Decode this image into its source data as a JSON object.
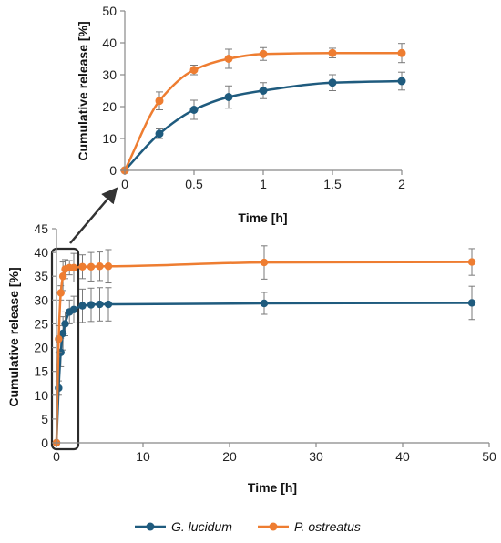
{
  "colors": {
    "g_lucidum": "#1f5b7e",
    "p_ostreatus": "#ee7d31",
    "axis": "#888888",
    "error_bar": "#7a7a7a",
    "highlight_box": "#2b2b2b"
  },
  "legend": {
    "position": "bottom-center",
    "items": [
      "G. lucidum",
      "P. ostreatus"
    ]
  },
  "chart_data": [
    {
      "id": "inset",
      "type": "line",
      "xlabel": "Time [h]",
      "ylabel": "Cumulative release [%]",
      "xlim": [
        0,
        2
      ],
      "ylim": [
        0,
        50
      ],
      "xticks": [
        0,
        0.5,
        1,
        1.5,
        2
      ],
      "xtick_labels": [
        "0",
        "0.5",
        "1",
        "1.5",
        "2"
      ],
      "yticks": [
        0,
        10,
        20,
        30,
        40,
        50
      ],
      "ytick_labels": [
        "0",
        "10",
        "20",
        "30",
        "40",
        "50"
      ],
      "grid": false,
      "series": [
        {
          "name": "G. lucidum",
          "x": [
            0,
            0.25,
            0.5,
            0.75,
            1,
            1.5,
            2
          ],
          "y": [
            0,
            11.5,
            19,
            23,
            25,
            27.5,
            28
          ],
          "error": [
            0,
            1.5,
            3,
            3.5,
            2.5,
            2.5,
            2.8
          ]
        },
        {
          "name": "P. ostreatus",
          "x": [
            0,
            0.25,
            0.5,
            0.75,
            1,
            1.5,
            2
          ],
          "y": [
            0,
            21.8,
            31.5,
            35,
            36.5,
            36.8,
            36.8
          ],
          "error": [
            0,
            2.8,
            1.5,
            3,
            2,
            1.5,
            3
          ]
        }
      ]
    },
    {
      "id": "main",
      "type": "line",
      "xlabel": "Time [h]",
      "ylabel": "Cumulative release [%]",
      "xlim": [
        0,
        50
      ],
      "ylim": [
        0,
        45
      ],
      "xticks": [
        0,
        10,
        20,
        30,
        40,
        50
      ],
      "xtick_labels": [
        "0",
        "10",
        "20",
        "30",
        "40",
        "50"
      ],
      "yticks": [
        0,
        5,
        10,
        15,
        20,
        25,
        30,
        35,
        40,
        45
      ],
      "ytick_labels": [
        "0",
        "5",
        "10",
        "15",
        "20",
        "25",
        "30",
        "35",
        "40",
        "45"
      ],
      "grid": false,
      "series": [
        {
          "name": "G. lucidum",
          "x": [
            0,
            0.25,
            0.5,
            0.75,
            1,
            1.5,
            2,
            3,
            4,
            5,
            6,
            24,
            48
          ],
          "y": [
            0,
            11.5,
            19,
            23,
            25,
            27.5,
            28,
            28.8,
            29,
            29.1,
            29.1,
            29.3,
            29.4
          ],
          "error": [
            0,
            1.5,
            3,
            3.5,
            2.5,
            2.5,
            2.8,
            3.5,
            3.5,
            3.5,
            3.5,
            2.3,
            3.5
          ]
        },
        {
          "name": "P. ostreatus",
          "x": [
            0,
            0.25,
            0.5,
            0.75,
            1,
            1.5,
            2,
            3,
            4,
            5,
            6,
            24,
            48
          ],
          "y": [
            0,
            21.8,
            31.5,
            35,
            36.5,
            36.8,
            36.8,
            37,
            37,
            37.1,
            37.1,
            37.9,
            38
          ],
          "error": [
            0,
            2.8,
            1.5,
            3,
            2,
            1.5,
            3,
            2.5,
            3,
            3,
            3.5,
            3.5,
            2.8
          ]
        }
      ]
    }
  ]
}
